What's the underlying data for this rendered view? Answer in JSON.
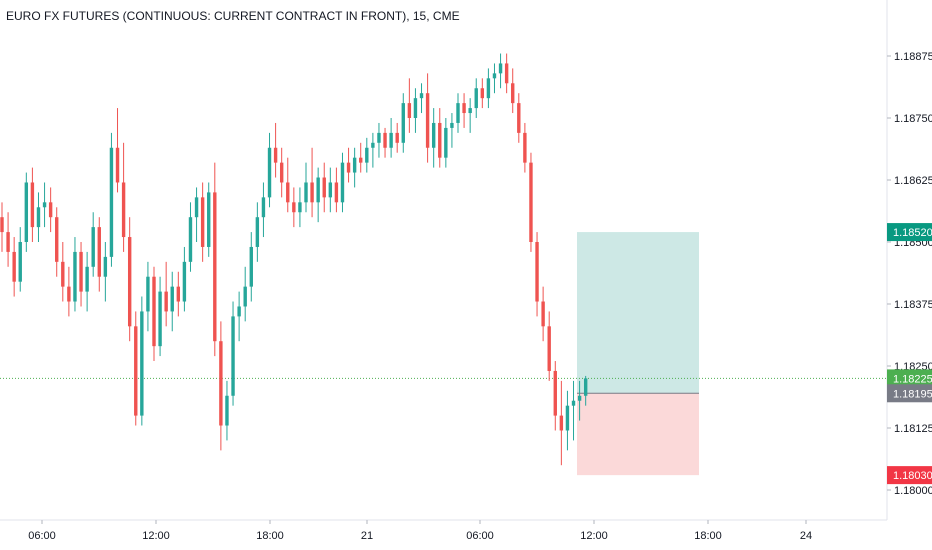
{
  "title": "EURO FX FUTURES (CONTINUOUS: CURRENT CONTRACT IN FRONT), 15, CME",
  "colors": {
    "up": "#26a69a",
    "down": "#ef5350",
    "target_zone": "#cde8e5",
    "stop_zone": "#fbd9d9",
    "current_line": "#4caf50",
    "tag_target": "#089981",
    "tag_current": "#4caf50",
    "tag_entry": "#787b86",
    "tag_stop": "#f23645"
  },
  "chart_data": {
    "type": "candlestick",
    "title": "EURO FX FUTURES (CONTINUOUS: CURRENT CONTRACT IN FRONT), 15, CME",
    "ylim": [
      1.1795,
      1.1897
    ],
    "y_ticks": [
      "1.18875",
      "1.18750",
      "1.18625",
      "1.18500",
      "1.18375",
      "1.18250",
      "1.18125",
      "1.18000"
    ],
    "x_ticks": [
      "06:00",
      "12:00",
      "18:00",
      "21",
      "06:00",
      "12:00",
      "18:00",
      "24"
    ],
    "grid": false,
    "price_tags": [
      {
        "label": "1.18520",
        "role": "target"
      },
      {
        "label": "1.18225",
        "role": "current"
      },
      {
        "label": "1.18195",
        "role": "entry"
      },
      {
        "label": "1.18030",
        "role": "stop"
      }
    ],
    "position": {
      "entry": 1.18195,
      "target": 1.1852,
      "stop": 1.1803
    },
    "candles": [
      [
        1.1855,
        1.1858,
        1.1848,
        1.1852
      ],
      [
        1.1852,
        1.1856,
        1.1845,
        1.1848
      ],
      [
        1.1848,
        1.1851,
        1.1839,
        1.1842
      ],
      [
        1.1842,
        1.1853,
        1.184,
        1.185
      ],
      [
        1.185,
        1.1864,
        1.1848,
        1.1862
      ],
      [
        1.1862,
        1.1865,
        1.185,
        1.1853
      ],
      [
        1.1853,
        1.186,
        1.185,
        1.1857
      ],
      [
        1.1857,
        1.1862,
        1.1853,
        1.1858
      ],
      [
        1.1858,
        1.1861,
        1.1852,
        1.1855
      ],
      [
        1.1855,
        1.1857,
        1.1843,
        1.1846
      ],
      [
        1.1846,
        1.185,
        1.1838,
        1.1841
      ],
      [
        1.1841,
        1.1845,
        1.1835,
        1.1838
      ],
      [
        1.1838,
        1.1851,
        1.1836,
        1.1848
      ],
      [
        1.1848,
        1.185,
        1.1837,
        1.184
      ],
      [
        1.184,
        1.1848,
        1.1836,
        1.1845
      ],
      [
        1.1845,
        1.1856,
        1.1843,
        1.1853
      ],
      [
        1.1853,
        1.1855,
        1.184,
        1.1843
      ],
      [
        1.1843,
        1.185,
        1.1838,
        1.1847
      ],
      [
        1.1847,
        1.1872,
        1.1845,
        1.1869
      ],
      [
        1.1869,
        1.1877,
        1.186,
        1.1862
      ],
      [
        1.1862,
        1.187,
        1.1848,
        1.1851
      ],
      [
        1.1851,
        1.1855,
        1.183,
        1.1833
      ],
      [
        1.1833,
        1.1836,
        1.1813,
        1.1815
      ],
      [
        1.1815,
        1.1839,
        1.1813,
        1.1836
      ],
      [
        1.1836,
        1.1846,
        1.1832,
        1.1843
      ],
      [
        1.1843,
        1.1845,
        1.1826,
        1.1829
      ],
      [
        1.1829,
        1.1843,
        1.1827,
        1.184
      ],
      [
        1.184,
        1.1846,
        1.1833,
        1.1836
      ],
      [
        1.1836,
        1.1844,
        1.1832,
        1.1841
      ],
      [
        1.1841,
        1.1844,
        1.1835,
        1.1838
      ],
      [
        1.1838,
        1.1849,
        1.1836,
        1.1846
      ],
      [
        1.1846,
        1.1858,
        1.1844,
        1.1855
      ],
      [
        1.1855,
        1.1861,
        1.185,
        1.1859
      ],
      [
        1.1859,
        1.1862,
        1.1846,
        1.1849
      ],
      [
        1.1849,
        1.1862,
        1.1847,
        1.186
      ],
      [
        1.186,
        1.1866,
        1.1827,
        1.183
      ],
      [
        1.183,
        1.1834,
        1.1808,
        1.1813
      ],
      [
        1.1813,
        1.1822,
        1.181,
        1.1819
      ],
      [
        1.1819,
        1.1838,
        1.1817,
        1.1835
      ],
      [
        1.1835,
        1.184,
        1.183,
        1.1837
      ],
      [
        1.1837,
        1.1845,
        1.1834,
        1.1841
      ],
      [
        1.1841,
        1.1852,
        1.1838,
        1.1849
      ],
      [
        1.1849,
        1.1858,
        1.1846,
        1.1855
      ],
      [
        1.1855,
        1.1862,
        1.1851,
        1.1859
      ],
      [
        1.1859,
        1.1872,
        1.1857,
        1.1869
      ],
      [
        1.1869,
        1.1874,
        1.1863,
        1.1866
      ],
      [
        1.1866,
        1.1869,
        1.1859,
        1.1862
      ],
      [
        1.1862,
        1.1867,
        1.1856,
        1.1858
      ],
      [
        1.1858,
        1.1861,
        1.1853,
        1.1856
      ],
      [
        1.1856,
        1.1861,
        1.1853,
        1.1858
      ],
      [
        1.1858,
        1.1866,
        1.1856,
        1.1862
      ],
      [
        1.1862,
        1.1869,
        1.1855,
        1.1858
      ],
      [
        1.1858,
        1.1865,
        1.1854,
        1.1863
      ],
      [
        1.1863,
        1.1866,
        1.1856,
        1.1859
      ],
      [
        1.1859,
        1.1865,
        1.1856,
        1.1862
      ],
      [
        1.1862,
        1.1865,
        1.1856,
        1.1858
      ],
      [
        1.1858,
        1.1868,
        1.1856,
        1.1866
      ],
      [
        1.1866,
        1.1869,
        1.1862,
        1.1864
      ],
      [
        1.1864,
        1.1869,
        1.1861,
        1.1867
      ],
      [
        1.1867,
        1.187,
        1.1864,
        1.1866
      ],
      [
        1.1866,
        1.1871,
        1.1864,
        1.1869
      ],
      [
        1.1869,
        1.1872,
        1.1865,
        1.187
      ],
      [
        1.187,
        1.1874,
        1.1867,
        1.1872
      ],
      [
        1.1872,
        1.1873,
        1.1867,
        1.1869
      ],
      [
        1.1869,
        1.1875,
        1.1867,
        1.1872
      ],
      [
        1.1872,
        1.1874,
        1.1868,
        1.187
      ],
      [
        1.187,
        1.188,
        1.1868,
        1.1878
      ],
      [
        1.1878,
        1.1883,
        1.1872,
        1.1875
      ],
      [
        1.1875,
        1.1881,
        1.1872,
        1.1879
      ],
      [
        1.1879,
        1.1882,
        1.1876,
        1.188
      ],
      [
        1.188,
        1.1884,
        1.1866,
        1.1869
      ],
      [
        1.1869,
        1.1877,
        1.1865,
        1.1874
      ],
      [
        1.1874,
        1.1877,
        1.1865,
        1.1867
      ],
      [
        1.1867,
        1.1875,
        1.1865,
        1.1873
      ],
      [
        1.1873,
        1.1876,
        1.1869,
        1.1874
      ],
      [
        1.1874,
        1.188,
        1.1872,
        1.1878
      ],
      [
        1.1878,
        1.188,
        1.1873,
        1.1876
      ],
      [
        1.1876,
        1.1879,
        1.1872,
        1.1877
      ],
      [
        1.1877,
        1.1883,
        1.1875,
        1.1881
      ],
      [
        1.1881,
        1.1883,
        1.1877,
        1.1879
      ],
      [
        1.1879,
        1.1885,
        1.1877,
        1.1883
      ],
      [
        1.1883,
        1.1886,
        1.188,
        1.1884
      ],
      [
        1.1884,
        1.1888,
        1.1881,
        1.1886
      ],
      [
        1.1886,
        1.1888,
        1.188,
        1.1882
      ],
      [
        1.1882,
        1.1885,
        1.1876,
        1.1878
      ],
      [
        1.1878,
        1.188,
        1.187,
        1.1872
      ],
      [
        1.1872,
        1.1874,
        1.1864,
        1.1866
      ],
      [
        1.1866,
        1.1868,
        1.1848,
        1.185
      ],
      [
        1.185,
        1.1852,
        1.1835,
        1.1838
      ],
      [
        1.1838,
        1.1841,
        1.183,
        1.1833
      ],
      [
        1.1833,
        1.1836,
        1.1822,
        1.1824
      ],
      [
        1.1824,
        1.1826,
        1.1812,
        1.1815
      ],
      [
        1.1815,
        1.1822,
        1.1805,
        1.1812
      ],
      [
        1.1812,
        1.182,
        1.1808,
        1.1817
      ],
      [
        1.1817,
        1.1822,
        1.181,
        1.1818
      ],
      [
        1.1818,
        1.1822,
        1.1814,
        1.1819
      ],
      [
        1.1819,
        1.1823,
        1.1817,
        1.18225
      ]
    ]
  },
  "price_axis_labels": [
    "1.18875",
    "1.18750",
    "1.18625",
    "1.18500",
    "1.18375",
    "1.18250",
    "1.18125",
    "1.18000"
  ],
  "time_axis_labels": [
    "06:00",
    "12:00",
    "18:00",
    "21",
    "06:00",
    "12:00",
    "18:00",
    "24"
  ]
}
